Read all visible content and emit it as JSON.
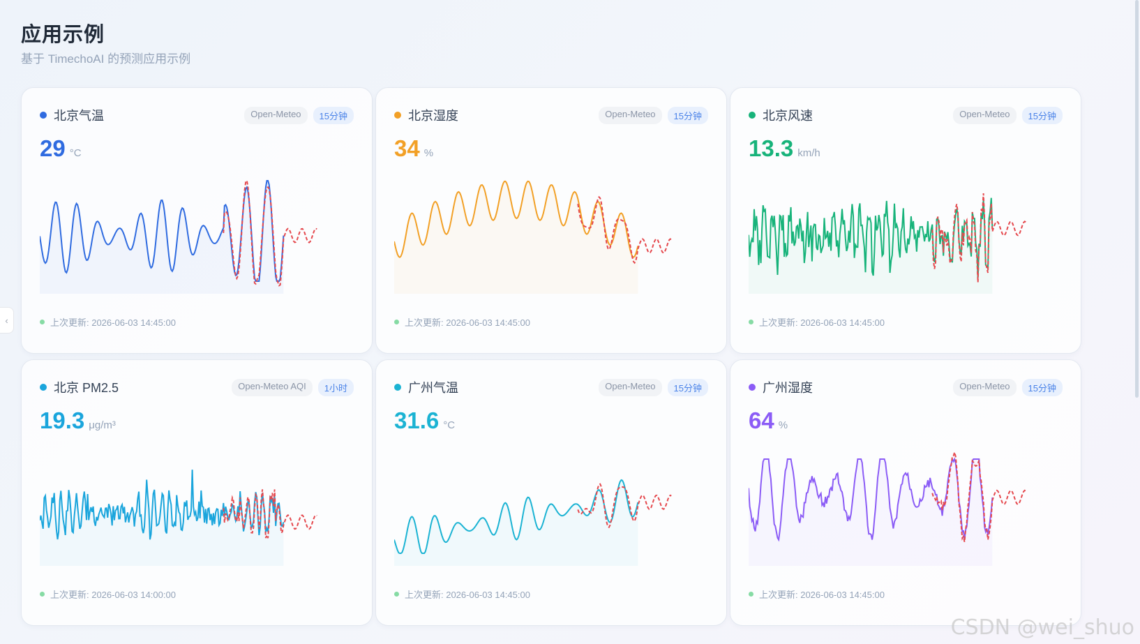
{
  "page": {
    "title": "应用示例",
    "subtitle": "基于 TimechoAI 的预测应用示例"
  },
  "cards": [
    {
      "title": "北京气温",
      "source": "Open-Meteo",
      "freq": "15分钟",
      "value": "29",
      "unit": "°C",
      "updated": "上次更新: 2026-06-03 14:45:00",
      "color": "#2f6be0"
    },
    {
      "title": "北京湿度",
      "source": "Open-Meteo",
      "freq": "15分钟",
      "value": "34",
      "unit": "%",
      "updated": "上次更新: 2026-06-03 14:45:00",
      "color": "#f2a026"
    },
    {
      "title": "北京风速",
      "source": "Open-Meteo",
      "freq": "15分钟",
      "value": "13.3",
      "unit": "km/h",
      "updated": "上次更新: 2026-06-03 14:45:00",
      "color": "#17b37a"
    },
    {
      "title": "北京 PM2.5",
      "source": "Open-Meteo AQI",
      "freq": "1小时",
      "value": "19.3",
      "unit": "μg/m³",
      "updated": "上次更新: 2026-06-03 14:00:00",
      "color": "#1aa5dc"
    },
    {
      "title": "广州气温",
      "source": "Open-Meteo",
      "freq": "15分钟",
      "value": "31.6",
      "unit": "°C",
      "updated": "上次更新: 2026-06-03 14:45:00",
      "color": "#1bb3d3"
    },
    {
      "title": "广州湿度",
      "source": "Open-Meteo",
      "freq": "15分钟",
      "value": "64",
      "unit": "%",
      "updated": "上次更新: 2026-06-03 14:45:00",
      "color": "#8b5cf6"
    }
  ],
  "forecast_color": "#e5484d",
  "watermark": "CSDN @wei_shuo"
}
